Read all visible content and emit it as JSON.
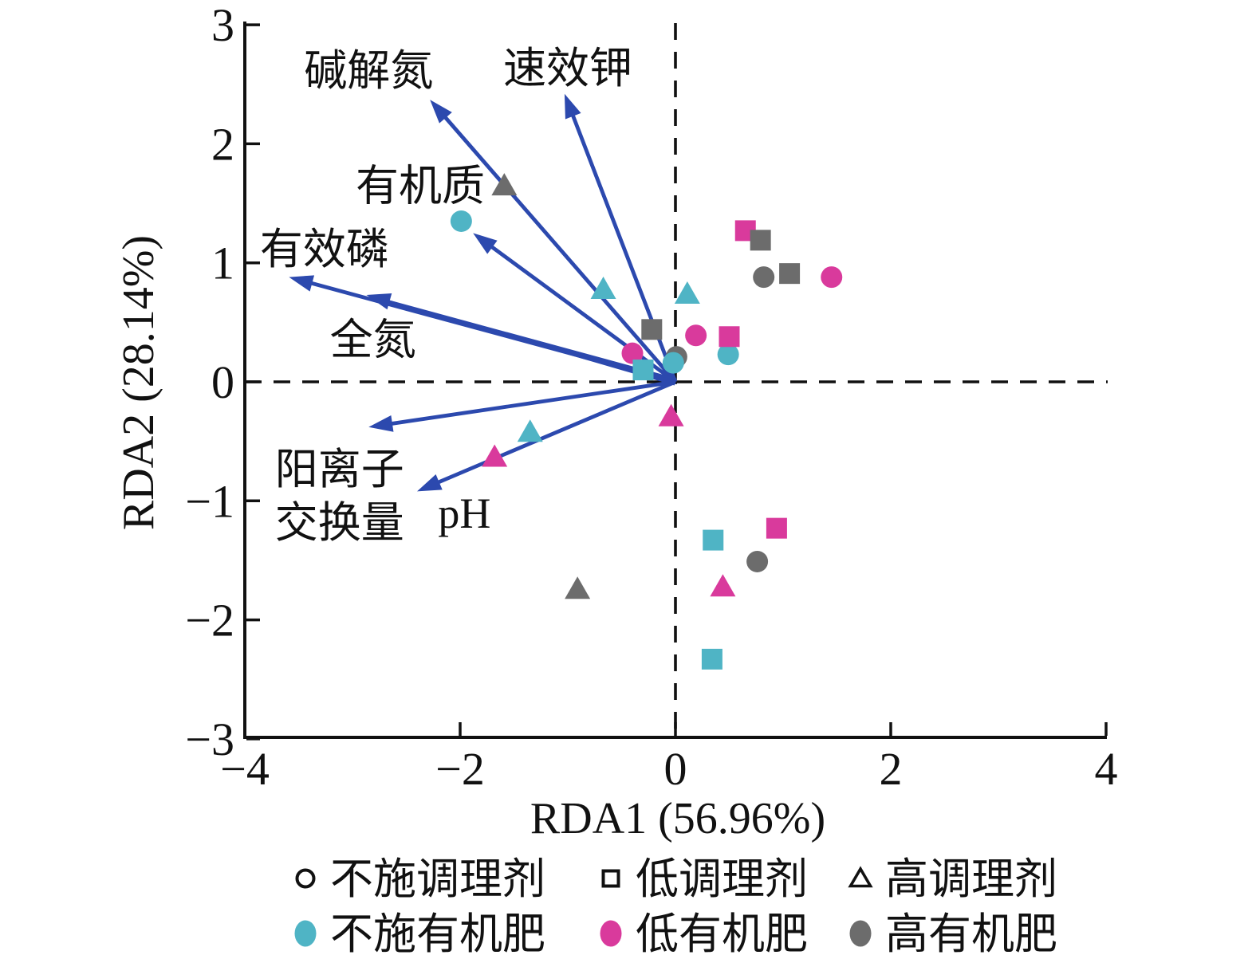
{
  "chart_data": {
    "type": "scatter",
    "title": "",
    "xlabel": "RDA1 (56.96%)",
    "ylabel": "RDA2 (28.14%)",
    "xlim": [
      -4,
      4
    ],
    "ylim": [
      -3,
      3
    ],
    "x_ticks": [
      -4,
      -2,
      0,
      2,
      4
    ],
    "y_ticks": [
      3,
      2,
      1,
      0,
      -1,
      -2,
      -3
    ],
    "zero_reference_lines": "dashed",
    "grid": false,
    "palette": {
      "arrow_blue": "#2C49AE",
      "cyan": "#4FB4C5",
      "magenta": "#D93A9C",
      "gray": "#6C6C6C",
      "axis_black": "#111111"
    },
    "env_arrows": [
      {
        "name": "碱解氮",
        "x": -2.28,
        "y": 2.37,
        "label_x": -2.85,
        "label_y": 2.62
      },
      {
        "name": "速效钾",
        "x": -1.03,
        "y": 2.42,
        "label_x": -1.0,
        "label_y": 2.64
      },
      {
        "name": "有机质",
        "x": -1.88,
        "y": 1.25,
        "label_x": -2.37,
        "label_y": 1.65
      },
      {
        "name": "有效磷",
        "x": -3.59,
        "y": 0.88,
        "label_x": -3.26,
        "label_y": 1.12
      },
      {
        "name": "全氮",
        "x": -2.87,
        "y": 0.73,
        "label_x": -2.81,
        "label_y": 0.36,
        "double_shaft": true
      },
      {
        "name": "阳离子交换量",
        "x": -2.85,
        "y": -0.38,
        "label_lines": [
          "阳离子",
          "交换量"
        ],
        "label_x": -3.12,
        "label_y": -0.73,
        "line_step": -0.45
      },
      {
        "name": "pH",
        "x": -2.4,
        "y": -0.92,
        "label_x": -1.96,
        "label_y": -1.1
      }
    ],
    "points": [
      {
        "x": -1.99,
        "y": 1.35,
        "shape": "circle",
        "color": "cyan",
        "conditioner": "不施调理剂",
        "organic": "不施有机肥"
      },
      {
        "x": -1.59,
        "y": 1.65,
        "shape": "triangle",
        "color": "gray",
        "conditioner": "高调理剂",
        "organic": "高有机肥"
      },
      {
        "x": -0.67,
        "y": 0.78,
        "shape": "triangle",
        "color": "cyan",
        "conditioner": "高调理剂",
        "organic": "不施有机肥"
      },
      {
        "x": 0.11,
        "y": 0.74,
        "shape": "triangle",
        "color": "cyan",
        "conditioner": "高调理剂",
        "organic": "不施有机肥"
      },
      {
        "x": -0.22,
        "y": 0.44,
        "shape": "square",
        "color": "gray",
        "conditioner": "低调理剂",
        "organic": "高有机肥"
      },
      {
        "x": -0.4,
        "y": 0.24,
        "shape": "circle",
        "color": "magenta",
        "conditioner": "不施调理剂",
        "organic": "低有机肥"
      },
      {
        "x": -0.3,
        "y": 0.1,
        "shape": "square",
        "color": "cyan",
        "conditioner": "低调理剂",
        "organic": "不施有机肥"
      },
      {
        "x": 0.01,
        "y": 0.21,
        "shape": "circle",
        "color": "gray",
        "conditioner": "不施调理剂",
        "organic": "高有机肥"
      },
      {
        "x": -0.02,
        "y": 0.16,
        "shape": "circle",
        "color": "cyan",
        "conditioner": "不施调理剂",
        "organic": "不施有机肥"
      },
      {
        "x": 0.19,
        "y": 0.39,
        "shape": "circle",
        "color": "magenta",
        "conditioner": "不施调理剂",
        "organic": "低有机肥"
      },
      {
        "x": 0.49,
        "y": 0.23,
        "shape": "circle",
        "color": "cyan",
        "conditioner": "不施调理剂",
        "organic": "不施有机肥"
      },
      {
        "x": 0.5,
        "y": 0.38,
        "shape": "square",
        "color": "magenta",
        "conditioner": "低调理剂",
        "organic": "低有机肥"
      },
      {
        "x": 0.65,
        "y": 1.27,
        "shape": "square",
        "color": "magenta",
        "conditioner": "低调理剂",
        "organic": "低有机肥"
      },
      {
        "x": 0.79,
        "y": 1.19,
        "shape": "square",
        "color": "gray",
        "conditioner": "低调理剂",
        "organic": "高有机肥"
      },
      {
        "x": 0.82,
        "y": 0.88,
        "shape": "circle",
        "color": "gray",
        "conditioner": "不施调理剂",
        "organic": "高有机肥"
      },
      {
        "x": 1.06,
        "y": 0.91,
        "shape": "square",
        "color": "gray",
        "conditioner": "低调理剂",
        "organic": "高有机肥"
      },
      {
        "x": 1.45,
        "y": 0.88,
        "shape": "circle",
        "color": "magenta",
        "conditioner": "不施调理剂",
        "organic": "低有机肥"
      },
      {
        "x": -0.04,
        "y": -0.29,
        "shape": "triangle",
        "color": "magenta",
        "conditioner": "高调理剂",
        "organic": "低有机肥"
      },
      {
        "x": -1.35,
        "y": -0.42,
        "shape": "triangle",
        "color": "cyan",
        "conditioner": "高调理剂",
        "organic": "不施有机肥"
      },
      {
        "x": -1.68,
        "y": -0.63,
        "shape": "triangle",
        "color": "magenta",
        "conditioner": "高调理剂",
        "organic": "低有机肥"
      },
      {
        "x": -0.91,
        "y": -1.74,
        "shape": "triangle",
        "color": "gray",
        "conditioner": "高调理剂",
        "organic": "高有机肥"
      },
      {
        "x": 0.35,
        "y": -1.33,
        "shape": "square",
        "color": "cyan",
        "conditioner": "低调理剂",
        "organic": "不施有机肥"
      },
      {
        "x": 0.94,
        "y": -1.23,
        "shape": "square",
        "color": "magenta",
        "conditioner": "低调理剂",
        "organic": "低有机肥"
      },
      {
        "x": 0.76,
        "y": -1.51,
        "shape": "circle",
        "color": "gray",
        "conditioner": "不施调理剂",
        "organic": "高有机肥"
      },
      {
        "x": 0.44,
        "y": -1.72,
        "shape": "triangle",
        "color": "magenta",
        "conditioner": "高调理剂",
        "organic": "低有机肥"
      },
      {
        "x": 0.34,
        "y": -2.33,
        "shape": "square",
        "color": "cyan",
        "conditioner": "低调理剂",
        "organic": "不施有机肥"
      }
    ],
    "legend": {
      "rows": [
        {
          "items": [
            {
              "marker": "circle-open",
              "label": "不施调理剂"
            },
            {
              "marker": "square-open",
              "label": "低调理剂"
            },
            {
              "marker": "triangle-open",
              "label": "高调理剂"
            }
          ]
        },
        {
          "items": [
            {
              "marker": "dot",
              "color": "cyan",
              "label": "不施有机肥"
            },
            {
              "marker": "dot",
              "color": "magenta",
              "label": "低有机肥"
            },
            {
              "marker": "dot",
              "color": "gray",
              "label": "高有机肥"
            }
          ]
        }
      ]
    }
  }
}
